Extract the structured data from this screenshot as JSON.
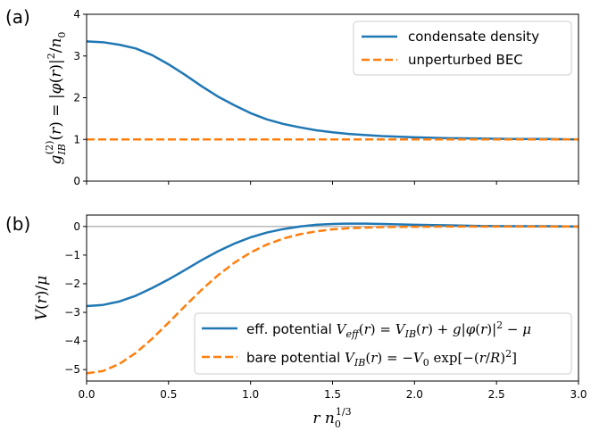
{
  "chart_data": [
    {
      "type": "line",
      "panel_label": "(a)",
      "ylabel": "g_IB^(2)(r) = |φ(r)|² / n₀",
      "xlim": [
        0,
        3
      ],
      "ylim": [
        0,
        4
      ],
      "yticks": [
        "0",
        "1",
        "2",
        "3",
        "4"
      ],
      "legend": "top-right",
      "grid": false,
      "series": [
        {
          "name": "condensate density",
          "color": "#1f77b4",
          "style": "solid",
          "x": [
            0,
            0.1,
            0.2,
            0.3,
            0.4,
            0.5,
            0.6,
            0.7,
            0.8,
            0.9,
            1.0,
            1.1,
            1.2,
            1.3,
            1.4,
            1.5,
            1.6,
            1.8,
            2.0,
            2.2,
            2.4,
            2.6,
            2.8,
            3.0
          ],
          "y": [
            3.35,
            3.33,
            3.27,
            3.18,
            3.02,
            2.8,
            2.55,
            2.28,
            2.03,
            1.82,
            1.63,
            1.48,
            1.37,
            1.29,
            1.22,
            1.17,
            1.13,
            1.08,
            1.05,
            1.03,
            1.02,
            1.01,
            1.01,
            1.0
          ]
        },
        {
          "name": "unperturbed BEC",
          "color": "#ff7f0e",
          "style": "dashed",
          "x": [
            0,
            3
          ],
          "y": [
            1,
            1
          ]
        }
      ]
    },
    {
      "type": "line",
      "panel_label": "(b)",
      "ylabel": "V(r)/μ",
      "xlabel": "r n₀^(1/3)",
      "xlim": [
        0,
        3
      ],
      "ylim": [
        -5.4,
        0.4
      ],
      "xticks": [
        "0.0",
        "0.5",
        "1.0",
        "1.5",
        "2.0",
        "2.5",
        "3.0"
      ],
      "yticks": [
        "0",
        "−1",
        "−2",
        "−3",
        "−4",
        "−5"
      ],
      "reference_line": 0,
      "legend": "bottom-right",
      "grid": false,
      "series": [
        {
          "name": "eff. potential V_eff(r) = V_IB(r) + g|φ(r)|² − μ",
          "color": "#1f77b4",
          "style": "solid",
          "x": [
            0,
            0.1,
            0.2,
            0.3,
            0.4,
            0.5,
            0.6,
            0.7,
            0.8,
            0.9,
            1.0,
            1.1,
            1.2,
            1.3,
            1.4,
            1.5,
            1.6,
            1.7,
            1.8,
            2.0,
            2.2,
            2.4,
            2.6,
            2.8,
            3.0
          ],
          "y": [
            -2.78,
            -2.74,
            -2.62,
            -2.42,
            -2.15,
            -1.85,
            -1.52,
            -1.18,
            -0.87,
            -0.6,
            -0.38,
            -0.21,
            -0.09,
            0.0,
            0.06,
            0.09,
            0.1,
            0.1,
            0.09,
            0.06,
            0.04,
            0.02,
            0.01,
            0.01,
            0.0
          ]
        },
        {
          "name": "bare potential V_IB(r) = −V₀ exp[−(r/R)²]",
          "color": "#ff7f0e",
          "style": "dashed",
          "x": [
            0,
            0.1,
            0.2,
            0.3,
            0.4,
            0.5,
            0.6,
            0.7,
            0.8,
            0.9,
            1.0,
            1.1,
            1.2,
            1.3,
            1.4,
            1.5,
            1.6,
            1.8,
            2.0,
            2.2,
            2.4,
            2.6,
            2.8,
            3.0
          ],
          "y": [
            -5.13,
            -5.05,
            -4.8,
            -4.42,
            -3.92,
            -3.36,
            -2.78,
            -2.22,
            -1.71,
            -1.27,
            -0.91,
            -0.63,
            -0.42,
            -0.27,
            -0.17,
            -0.1,
            -0.06,
            -0.02,
            -0.01,
            0.0,
            0.0,
            0.0,
            0.0,
            0.0
          ]
        }
      ]
    }
  ]
}
